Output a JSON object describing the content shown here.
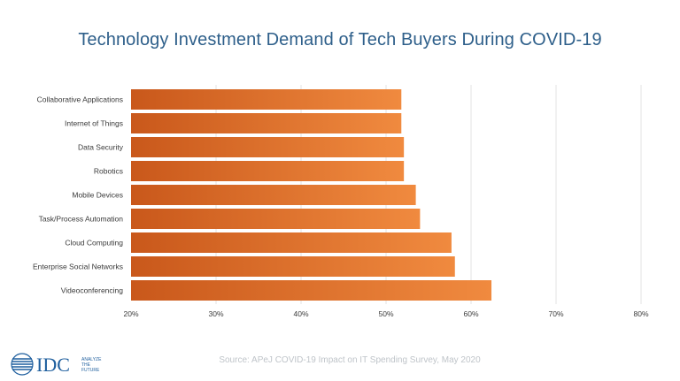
{
  "chart_data": {
    "type": "bar",
    "orientation": "horizontal",
    "title": "Technology Investment Demand of Tech Buyers During COVID-19",
    "categories": [
      "Collaborative Applications",
      "Internet of Things",
      "Data Security",
      "Robotics",
      "Mobile Devices",
      "Task/Process Automation",
      "Cloud Computing",
      "Enterprise Social Networks",
      "Videoconferencing"
    ],
    "values": [
      51.8,
      51.8,
      52.1,
      52.1,
      53.5,
      54.0,
      57.7,
      58.1,
      62.4
    ],
    "xlim": [
      20,
      80
    ],
    "x_ticks": [
      20,
      30,
      40,
      50,
      60,
      70,
      80
    ],
    "x_tick_labels": [
      "20%",
      "30%",
      "40%",
      "50%",
      "60%",
      "70%",
      "80%"
    ],
    "grid": "vertical",
    "xlabel": "",
    "ylabel": ""
  },
  "colors": {
    "title": "#2e5f8a",
    "bar_dark": "#c9581b",
    "bar_light": "#f08a3f",
    "gridline": "#e3e3e3",
    "axis_text": "#3a3a3a",
    "logo_blue": "#1f5f9e",
    "source_text": "#bfc4c9"
  },
  "footer": {
    "logo_text": "IDC",
    "logo_tagline_1": "ANALYZE",
    "logo_tagline_2": "THE",
    "logo_tagline_3": "FUTURE",
    "source": "Source: APeJ COVID-19 Impact on IT Spending Survey, May 2020"
  }
}
